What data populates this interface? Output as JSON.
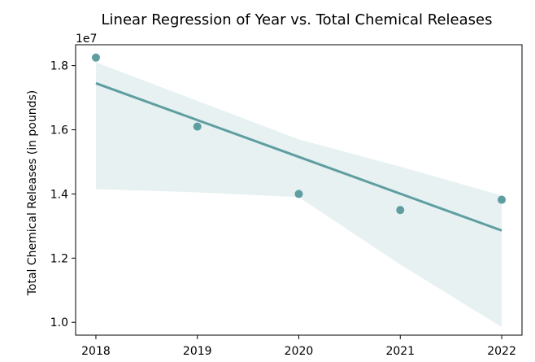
{
  "chart_data": {
    "type": "scatter",
    "title": "Linear Regression of Year vs. Total Chemical Releases",
    "xlabel": "",
    "ylabel": "Total Chemical Releases (in pounds)",
    "y_offset_label": "1e7",
    "x": [
      2018,
      2019,
      2020,
      2021,
      2022
    ],
    "y": [
      18250000,
      16100000,
      14000000,
      13500000,
      13820000
    ],
    "regression_line": {
      "x": [
        2018,
        2022
      ],
      "y": [
        17450000,
        12860000
      ]
    },
    "confidence_band": {
      "x": [
        2018,
        2019,
        2020,
        2021,
        2022
      ],
      "lower": [
        14150000,
        14050000,
        13900000,
        11800000,
        9850000
      ],
      "upper": [
        18100000,
        16900000,
        15700000,
        14850000,
        13950000
      ]
    },
    "xlim": [
      2017.8,
      2022.2
    ],
    "ylim": [
      9600000,
      18650000
    ],
    "xticks": [
      2018,
      2019,
      2020,
      2021,
      2022
    ],
    "xtick_labels": [
      "2018",
      "2019",
      "2020",
      "2021",
      "2022"
    ],
    "yticks": [
      10000000,
      12000000,
      14000000,
      16000000,
      18000000
    ],
    "ytick_labels": [
      "1.0",
      "1.2",
      "1.4",
      "1.6",
      "1.8"
    ],
    "grid": false,
    "colors": {
      "series": "#5f9ea0",
      "band": "#5f9ea0"
    }
  }
}
